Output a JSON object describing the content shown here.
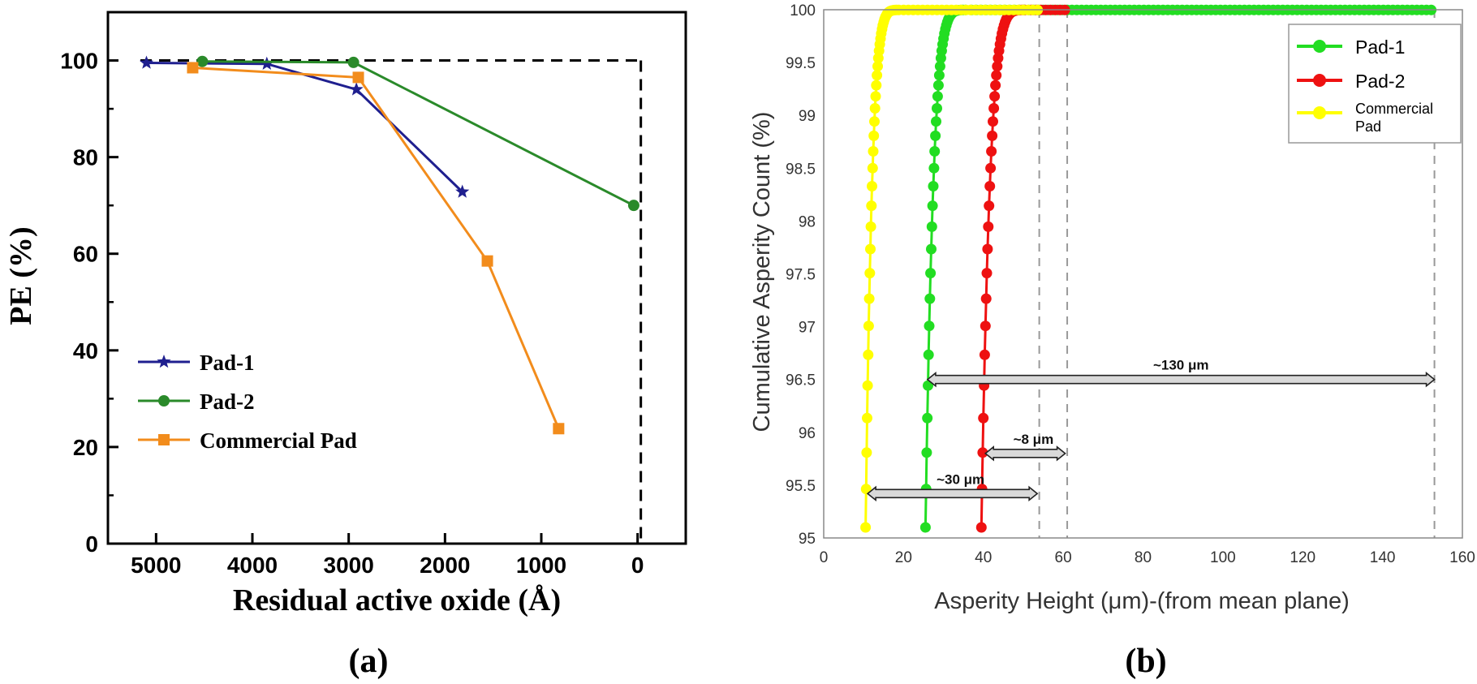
{
  "chart_data": [
    {
      "panel": "(a)",
      "type": "line",
      "xlabel": "Residual active oxide (Å)",
      "ylabel": "PE (%)",
      "xlim": [
        5500,
        -500
      ],
      "ylim": [
        0,
        110
      ],
      "x_ticks": [
        5000,
        4000,
        3000,
        2000,
        1000,
        0
      ],
      "y_ticks": [
        0,
        20,
        40,
        60,
        80,
        100
      ],
      "reference_line": {
        "y": 100,
        "x_end": 0
      },
      "series": [
        {
          "name": "Pad-1",
          "color": "#1f1f8f",
          "marker": "star",
          "x": [
            5100,
            3850,
            2920,
            1820
          ],
          "y": [
            99.5,
            99.3,
            94,
            72.8
          ]
        },
        {
          "name": "Pad-2",
          "color": "#2a8a2a",
          "marker": "circle",
          "x": [
            4520,
            2950,
            40
          ],
          "y": [
            99.8,
            99.6,
            70
          ]
        },
        {
          "name": "Commercial Pad",
          "color": "#f28c1c",
          "marker": "square",
          "x": [
            4620,
            2900,
            1560,
            820
          ],
          "y": [
            98.5,
            96.5,
            58.5,
            23.8
          ]
        }
      ],
      "legend": [
        "Pad-1",
        "Pad-2",
        "Commercial Pad"
      ],
      "legend_position": "lower-left"
    },
    {
      "panel": "(b)",
      "type": "scatter",
      "xlabel": "Asperity Height (μm)-(from mean plane)",
      "ylabel": "Cumulative Asperity Count (%)",
      "xlim": [
        0,
        160
      ],
      "ylim": [
        95,
        100
      ],
      "x_ticks": [
        0,
        20,
        40,
        60,
        80,
        100,
        120,
        140,
        160
      ],
      "y_ticks": [
        "95",
        "95.5",
        "96",
        "96.5",
        "97",
        "97.5",
        "98",
        "98.5",
        "99",
        "99.5",
        "100"
      ],
      "series": [
        {
          "name": "Pad-1",
          "color": "#22dd22",
          "x_start": 25.5,
          "x_sat": 37,
          "x_end": 153
        },
        {
          "name": "Pad-2",
          "color": "#ee1111",
          "x_start": 39.5,
          "x_sat": 52,
          "x_end": 61
        },
        {
          "name": "Commercial Pad",
          "color": "#ffff00",
          "x_start": 10.5,
          "x_sat": 20,
          "x_end": 54
        }
      ],
      "legend": [
        "Pad-1",
        "Pad-2",
        "Commercial\nPad"
      ],
      "legend_position": "top-right",
      "dashed_lines_x": [
        54,
        61,
        153
      ],
      "annotations": [
        {
          "label": "~130 μm",
          "x1": 26,
          "x2": 153,
          "y": 96.5
        },
        {
          "label": "~8 μm",
          "x1": 40.5,
          "x2": 60.5,
          "y": 95.8
        },
        {
          "label": "~30 μm",
          "x1": 11,
          "x2": 53.5,
          "y": 95.42
        }
      ]
    }
  ],
  "panels": {
    "a_label": "(a)",
    "b_label": "(b)"
  }
}
